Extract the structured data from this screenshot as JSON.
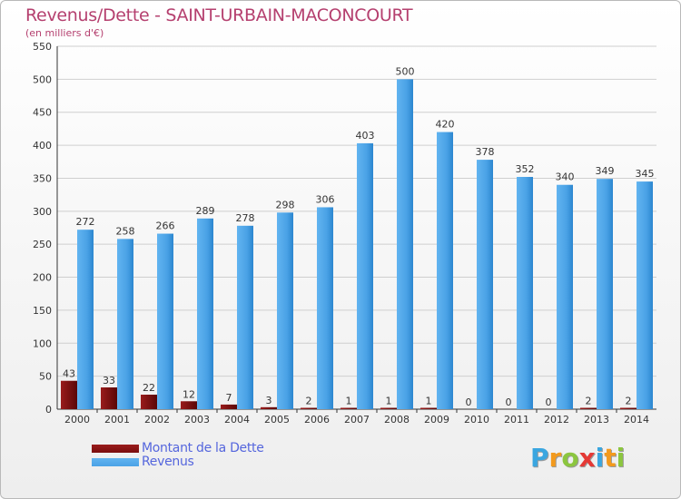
{
  "title": "Revenus/Dette - SAINT-URBAIN-MACONCOURT",
  "subtitle": "(en milliers d'€)",
  "logo": {
    "letters": [
      "P",
      "r",
      "o",
      "x",
      "i",
      "t",
      "i"
    ],
    "colors": [
      "#3aa6e0",
      "#f39a1d",
      "#8cc63f",
      "#e53935",
      "#3aa6e0",
      "#f39a1d",
      "#8cc63f"
    ]
  },
  "colors": {
    "dette": "#7a0d0d",
    "revenus": "#4aa2e6",
    "title": "#b5406f",
    "grid": "#cfcfcf"
  },
  "chart_data": {
    "type": "bar",
    "title": "Revenus/Dette - SAINT-URBAIN-MACONCOURT",
    "ylabel": "(en milliers d'€)",
    "xlabel": "",
    "ylim": [
      0,
      550
    ],
    "yticks": [
      0,
      50,
      100,
      150,
      200,
      250,
      300,
      350,
      400,
      450,
      500,
      550
    ],
    "grid": true,
    "legend": "bottom-left",
    "categories": [
      "2000",
      "2001",
      "2002",
      "2003",
      "2004",
      "2005",
      "2006",
      "2007",
      "2008",
      "2009",
      "2010",
      "2011",
      "2012",
      "2013",
      "2014"
    ],
    "series": [
      {
        "name": "Montant de la Dette",
        "values": [
          43,
          33,
          22,
          12,
          7,
          3,
          2,
          1,
          1,
          1,
          0,
          0,
          0,
          2,
          2
        ]
      },
      {
        "name": "Revenus",
        "values": [
          272,
          258,
          266,
          289,
          278,
          298,
          306,
          403,
          500,
          420,
          378,
          352,
          340,
          349,
          345
        ]
      }
    ]
  }
}
